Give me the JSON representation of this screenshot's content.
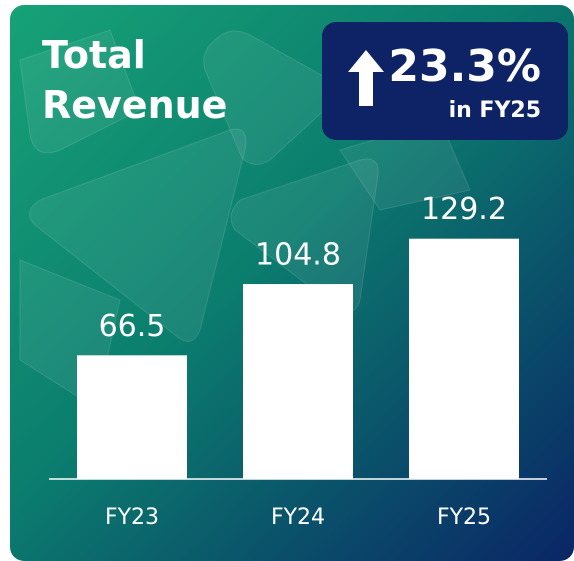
{
  "chart_data": {
    "type": "bar",
    "title": "Total Revenue",
    "annotations": [
      "23.3%",
      "in FY25"
    ],
    "categories": [
      "FY23",
      "FY24",
      "FY25"
    ],
    "values": [
      66.5,
      104.8,
      129.2
    ],
    "color": "#ffffff",
    "ylim": [
      0,
      150
    ]
  }
}
